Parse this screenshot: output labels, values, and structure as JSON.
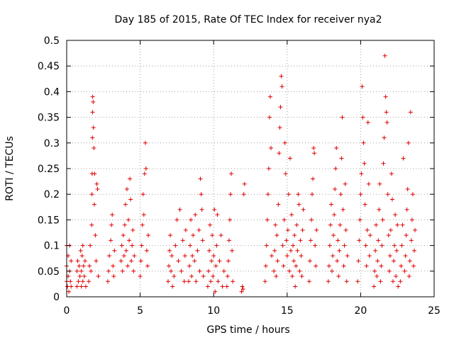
{
  "chart_data": {
    "type": "scatter",
    "title": "Day 185 of 2015, Rate Of TEC Index for receiver nya2",
    "xlabel": "GPS time / hours",
    "ylabel": "ROTI / TECUs",
    "xlim": [
      0,
      25
    ],
    "ylim": [
      0,
      0.5
    ],
    "grid": true,
    "x_ticks": [
      0,
      5,
      10,
      15,
      20,
      25
    ],
    "x_tick_labels": [
      "0",
      "5",
      "10",
      "15",
      "20",
      "25"
    ],
    "y_ticks": [
      0,
      0.05,
      0.1,
      0.15,
      0.2,
      0.25,
      0.3,
      0.35,
      0.4,
      0.45,
      0.5
    ],
    "y_tick_labels": [
      "0",
      "0.05",
      "0.1",
      "0.15",
      "0.2",
      "0.25",
      "0.3",
      "0.35",
      "0.4",
      "0.45",
      "0.5"
    ],
    "marker": "plus",
    "color": "#e00000",
    "series": [
      {
        "name": "ROTI nya2",
        "points": [
          [
            0.0,
            0.03
          ],
          [
            0.0,
            0.06
          ],
          [
            0.0,
            0.1
          ],
          [
            0.05,
            0.02
          ],
          [
            0.1,
            0.04
          ],
          [
            0.1,
            0.08
          ],
          [
            0.15,
            0.01
          ],
          [
            0.2,
            0.05
          ],
          [
            0.2,
            0.1
          ],
          [
            0.25,
            0.03
          ],
          [
            0.3,
            0.07
          ],
          [
            0.3,
            0.02
          ],
          [
            0.7,
            0.02
          ],
          [
            0.7,
            0.05
          ],
          [
            0.75,
            0.07
          ],
          [
            0.8,
            0.03
          ],
          [
            0.85,
            0.06
          ],
          [
            0.9,
            0.04
          ],
          [
            0.95,
            0.09
          ],
          [
            1.0,
            0.02
          ],
          [
            1.0,
            0.05
          ],
          [
            1.05,
            0.08
          ],
          [
            1.1,
            0.03
          ],
          [
            1.1,
            0.1
          ],
          [
            1.15,
            0.06
          ],
          [
            1.2,
            0.04
          ],
          [
            1.25,
            0.07
          ],
          [
            1.3,
            0.02
          ],
          [
            1.5,
            0.03
          ],
          [
            1.55,
            0.06
          ],
          [
            1.6,
            0.1
          ],
          [
            1.65,
            0.05
          ],
          [
            1.7,
            0.14
          ],
          [
            1.72,
            0.2
          ],
          [
            1.73,
            0.24
          ],
          [
            1.75,
            0.31
          ],
          [
            1.76,
            0.36
          ],
          [
            1.77,
            0.39
          ],
          [
            1.8,
            0.38
          ],
          [
            1.82,
            0.33
          ],
          [
            1.85,
            0.29
          ],
          [
            1.88,
            0.18
          ],
          [
            1.9,
            0.24
          ],
          [
            1.95,
            0.12
          ],
          [
            2.0,
            0.07
          ],
          [
            2.05,
            0.22
          ],
          [
            2.1,
            0.21
          ],
          [
            2.15,
            0.04
          ],
          [
            2.8,
            0.03
          ],
          [
            2.85,
            0.05
          ],
          [
            2.9,
            0.08
          ],
          [
            3.0,
            0.11
          ],
          [
            3.05,
            0.14
          ],
          [
            3.1,
            0.16
          ],
          [
            3.15,
            0.06
          ],
          [
            3.2,
            0.04
          ],
          [
            3.25,
            0.09
          ],
          [
            3.7,
            0.07
          ],
          [
            3.75,
            0.1
          ],
          [
            3.8,
            0.05
          ],
          [
            3.85,
            0.12
          ],
          [
            3.9,
            0.08
          ],
          [
            3.95,
            0.14
          ],
          [
            4.0,
            0.18
          ],
          [
            4.05,
            0.09
          ],
          [
            4.1,
            0.21
          ],
          [
            4.15,
            0.06
          ],
          [
            4.2,
            0.15
          ],
          [
            4.25,
            0.11
          ],
          [
            4.3,
            0.23
          ],
          [
            4.35,
            0.19
          ],
          [
            4.4,
            0.07
          ],
          [
            4.45,
            0.1
          ],
          [
            4.5,
            0.13
          ],
          [
            4.55,
            0.05
          ],
          [
            4.6,
            0.08
          ],
          [
            5.0,
            0.04
          ],
          [
            5.05,
            0.07
          ],
          [
            5.1,
            0.1
          ],
          [
            5.15,
            0.14
          ],
          [
            5.2,
            0.2
          ],
          [
            5.25,
            0.16
          ],
          [
            5.3,
            0.24
          ],
          [
            5.35,
            0.3
          ],
          [
            5.4,
            0.25
          ],
          [
            5.45,
            0.09
          ],
          [
            5.5,
            0.06
          ],
          [
            5.55,
            0.12
          ],
          [
            6.9,
            0.03
          ],
          [
            6.95,
            0.06
          ],
          [
            7.0,
            0.09
          ],
          [
            7.05,
            0.12
          ],
          [
            7.1,
            0.05
          ],
          [
            7.15,
            0.08
          ],
          [
            7.2,
            0.02
          ],
          [
            7.3,
            0.04
          ],
          [
            7.4,
            0.1
          ],
          [
            7.5,
            0.15
          ],
          [
            7.6,
            0.07
          ],
          [
            7.7,
            0.17
          ],
          [
            7.8,
            0.05
          ],
          [
            7.9,
            0.11
          ],
          [
            8.0,
            0.03
          ],
          [
            8.05,
            0.08
          ],
          [
            8.1,
            0.13
          ],
          [
            8.3,
            0.03
          ],
          [
            8.35,
            0.06
          ],
          [
            8.4,
            0.1
          ],
          [
            8.45,
            0.15
          ],
          [
            8.5,
            0.04
          ],
          [
            8.55,
            0.08
          ],
          [
            8.6,
            0.12
          ],
          [
            8.7,
            0.07
          ],
          [
            8.75,
            0.16
          ],
          [
            8.8,
            0.03
          ],
          [
            8.9,
            0.09
          ],
          [
            9.0,
            0.13
          ],
          [
            9.05,
            0.05
          ],
          [
            9.1,
            0.23
          ],
          [
            9.15,
            0.2
          ],
          [
            9.2,
            0.17
          ],
          [
            9.25,
            0.11
          ],
          [
            9.3,
            0.04
          ],
          [
            9.6,
            0.02
          ],
          [
            9.65,
            0.05
          ],
          [
            9.7,
            0.09
          ],
          [
            9.75,
            0.14
          ],
          [
            9.8,
            0.03
          ],
          [
            9.85,
            0.07
          ],
          [
            9.9,
            0.12
          ],
          [
            9.95,
            0.04
          ],
          [
            10.0,
            0.08
          ],
          [
            10.05,
            0.17
          ],
          [
            10.1,
            0.01
          ],
          [
            10.15,
            0.06
          ],
          [
            10.2,
            0.1
          ],
          [
            10.25,
            0.16
          ],
          [
            10.3,
            0.03
          ],
          [
            10.4,
            0.07
          ],
          [
            10.5,
            0.12
          ],
          [
            10.6,
            0.02
          ],
          [
            10.7,
            0.05
          ],
          [
            10.9,
            0.02
          ],
          [
            10.95,
            0.04
          ],
          [
            11.0,
            0.07
          ],
          [
            11.05,
            0.11
          ],
          [
            11.1,
            0.15
          ],
          [
            11.15,
            0.2
          ],
          [
            11.2,
            0.24
          ],
          [
            11.25,
            0.09
          ],
          [
            11.3,
            0.03
          ],
          [
            11.9,
            0.01
          ],
          [
            11.95,
            0.02
          ],
          [
            12.0,
            0.015
          ],
          [
            12.05,
            0.2
          ],
          [
            12.1,
            0.22
          ],
          [
            13.5,
            0.03
          ],
          [
            13.55,
            0.06
          ],
          [
            13.6,
            0.1
          ],
          [
            13.65,
            0.15
          ],
          [
            13.7,
            0.2
          ],
          [
            13.75,
            0.25
          ],
          [
            13.8,
            0.35
          ],
          [
            13.85,
            0.39
          ],
          [
            13.9,
            0.29
          ],
          [
            13.95,
            0.08
          ],
          [
            14.1,
            0.05
          ],
          [
            14.15,
            0.09
          ],
          [
            14.2,
            0.14
          ],
          [
            14.25,
            0.04
          ],
          [
            14.3,
            0.12
          ],
          [
            14.35,
            0.07
          ],
          [
            14.4,
            0.18
          ],
          [
            14.45,
            0.28
          ],
          [
            14.5,
            0.33
          ],
          [
            14.55,
            0.37
          ],
          [
            14.6,
            0.43
          ],
          [
            14.65,
            0.41
          ],
          [
            14.7,
            0.1
          ],
          [
            14.75,
            0.06
          ],
          [
            14.8,
            0.15
          ],
          [
            14.85,
            0.3
          ],
          [
            14.9,
            0.24
          ],
          [
            14.95,
            0.11
          ],
          [
            15.0,
            0.08
          ],
          [
            15.05,
            0.13
          ],
          [
            15.1,
            0.2
          ],
          [
            15.15,
            0.05
          ],
          [
            15.2,
            0.27
          ],
          [
            15.25,
            0.09
          ],
          [
            15.3,
            0.16
          ],
          [
            15.35,
            0.04
          ],
          [
            15.4,
            0.1
          ],
          [
            15.45,
            0.07
          ],
          [
            15.5,
            0.12
          ],
          [
            15.55,
            0.02
          ],
          [
            15.6,
            0.06
          ],
          [
            15.65,
            0.14
          ],
          [
            15.7,
            0.09
          ],
          [
            15.75,
            0.2
          ],
          [
            15.8,
            0.18
          ],
          [
            15.85,
            0.05
          ],
          [
            15.9,
            0.11
          ],
          [
            15.95,
            0.08
          ],
          [
            16.0,
            0.04
          ],
          [
            16.05,
            0.13
          ],
          [
            16.1,
            0.17
          ],
          [
            16.5,
            0.03
          ],
          [
            16.55,
            0.07
          ],
          [
            16.6,
            0.11
          ],
          [
            16.65,
            0.15
          ],
          [
            16.7,
            0.2
          ],
          [
            16.75,
            0.23
          ],
          [
            16.8,
            0.29
          ],
          [
            16.85,
            0.28
          ],
          [
            16.9,
            0.1
          ],
          [
            16.95,
            0.06
          ],
          [
            17.0,
            0.13
          ],
          [
            17.8,
            0.03
          ],
          [
            17.85,
            0.06
          ],
          [
            17.9,
            0.1
          ],
          [
            17.95,
            0.14
          ],
          [
            18.0,
            0.18
          ],
          [
            18.05,
            0.05
          ],
          [
            18.1,
            0.08
          ],
          [
            18.15,
            0.12
          ],
          [
            18.2,
            0.16
          ],
          [
            18.25,
            0.21
          ],
          [
            18.3,
            0.25
          ],
          [
            18.35,
            0.29
          ],
          [
            18.4,
            0.07
          ],
          [
            18.45,
            0.11
          ],
          [
            18.5,
            0.04
          ],
          [
            18.55,
            0.09
          ],
          [
            18.6,
            0.14
          ],
          [
            18.65,
            0.2
          ],
          [
            18.7,
            0.27
          ],
          [
            18.75,
            0.35
          ],
          [
            18.8,
            0.17
          ],
          [
            18.85,
            0.06
          ],
          [
            18.9,
            0.1
          ],
          [
            18.95,
            0.22
          ],
          [
            19.0,
            0.13
          ],
          [
            19.05,
            0.03
          ],
          [
            19.1,
            0.08
          ],
          [
            19.8,
            0.03
          ],
          [
            19.85,
            0.07
          ],
          [
            19.9,
            0.11
          ],
          [
            19.95,
            0.15
          ],
          [
            20.0,
            0.2
          ],
          [
            20.05,
            0.24
          ],
          [
            20.1,
            0.41
          ],
          [
            20.15,
            0.35
          ],
          [
            20.2,
            0.3
          ],
          [
            20.25,
            0.26
          ],
          [
            20.3,
            0.18
          ],
          [
            20.35,
            0.1
          ],
          [
            20.4,
            0.06
          ],
          [
            20.45,
            0.13
          ],
          [
            20.5,
            0.34
          ],
          [
            20.55,
            0.22
          ],
          [
            20.6,
            0.08
          ],
          [
            20.65,
            0.12
          ],
          [
            20.9,
            0.02
          ],
          [
            20.95,
            0.05
          ],
          [
            21.0,
            0.09
          ],
          [
            21.05,
            0.14
          ],
          [
            21.1,
            0.04
          ],
          [
            21.15,
            0.07
          ],
          [
            21.2,
            0.11
          ],
          [
            21.25,
            0.17
          ],
          [
            21.3,
            0.22
          ],
          [
            21.35,
            0.03
          ],
          [
            21.4,
            0.06
          ],
          [
            21.45,
            0.1
          ],
          [
            21.5,
            0.15
          ],
          [
            21.55,
            0.26
          ],
          [
            21.6,
            0.31
          ],
          [
            21.65,
            0.47
          ],
          [
            21.7,
            0.39
          ],
          [
            21.75,
            0.36
          ],
          [
            21.8,
            0.34
          ],
          [
            21.85,
            0.2
          ],
          [
            21.9,
            0.12
          ],
          [
            21.95,
            0.05
          ],
          [
            22.0,
            0.08
          ],
          [
            22.05,
            0.13
          ],
          [
            22.1,
            0.24
          ],
          [
            22.15,
            0.19
          ],
          [
            22.2,
            0.03
          ],
          [
            22.25,
            0.07
          ],
          [
            22.3,
            0.1
          ],
          [
            22.35,
            0.16
          ],
          [
            22.4,
            0.04
          ],
          [
            22.45,
            0.09
          ],
          [
            22.5,
            0.14
          ],
          [
            22.55,
            0.02
          ],
          [
            22.7,
            0.03
          ],
          [
            22.75,
            0.06
          ],
          [
            22.8,
            0.1
          ],
          [
            22.85,
            0.14
          ],
          [
            22.9,
            0.27
          ],
          [
            23.0,
            0.05
          ],
          [
            23.05,
            0.08
          ],
          [
            23.1,
            0.12
          ],
          [
            23.15,
            0.17
          ],
          [
            23.2,
            0.21
          ],
          [
            23.25,
            0.3
          ],
          [
            23.3,
            0.04
          ],
          [
            23.35,
            0.07
          ],
          [
            23.4,
            0.36
          ],
          [
            23.45,
            0.11
          ],
          [
            23.5,
            0.15
          ],
          [
            23.55,
            0.2
          ],
          [
            23.6,
            0.06
          ],
          [
            23.65,
            0.09
          ],
          [
            23.7,
            0.13
          ]
        ]
      }
    ]
  }
}
